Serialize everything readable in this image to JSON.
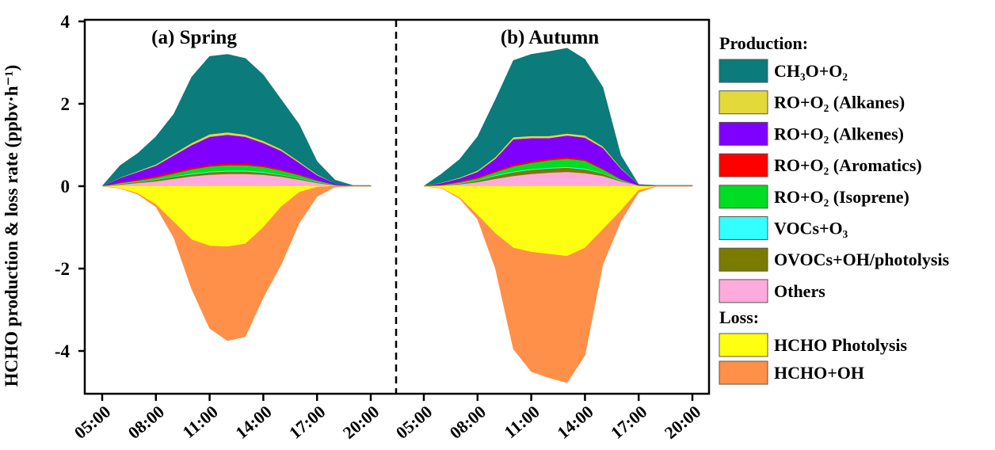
{
  "chart_data": {
    "type": "area",
    "ylabel": "HCHO production & loss rate (ppbv·h⁻¹)",
    "ylim": [
      -5,
      4
    ],
    "yticks": [
      "4",
      "2",
      "0",
      "-2",
      "-4"
    ],
    "ytick_values": [
      4,
      2,
      0,
      -2,
      -4
    ],
    "xticks": [
      "05:00",
      "08:00",
      "11:00",
      "14:00",
      "17:00",
      "20:00"
    ],
    "xtick_hours": [
      5,
      8,
      11,
      14,
      17,
      20
    ],
    "hours": [
      5,
      6,
      7,
      8,
      9,
      10,
      11,
      12,
      13,
      14,
      15,
      16,
      17,
      18,
      19,
      20
    ],
    "legend_position": "right",
    "legend": {
      "production_heading": "Production:",
      "loss_heading": "Loss:",
      "production": [
        {
          "key": "ch3o",
          "label": "CH₃O+O₂",
          "color": "#0b7b7b"
        },
        {
          "key": "alkanes",
          "label": "RO+O₂ (Alkanes)",
          "color": "#e3d93a"
        },
        {
          "key": "alkenes",
          "label": "RO+O₂ (Alkenes)",
          "color": "#7f00ff"
        },
        {
          "key": "aromatics",
          "label": "RO+O₂ (Aromatics)",
          "color": "#ff0000"
        },
        {
          "key": "isoprene",
          "label": "RO+O₂ (Isoprene)",
          "color": "#00dd22"
        },
        {
          "key": "vocs_o3",
          "label": "VOCs+O₃",
          "color": "#33ffff"
        },
        {
          "key": "ovocs",
          "label": "OVOCs+OH/photolysis",
          "color": "#7b7b00"
        },
        {
          "key": "others",
          "label": "Others",
          "color": "#ffaadd"
        }
      ],
      "loss": [
        {
          "key": "photolysis",
          "label": "HCHO Photolysis",
          "color": "#ffff11"
        },
        {
          "key": "oh",
          "label": "HCHO+OH",
          "color": "#ff904a"
        }
      ]
    },
    "panels": [
      {
        "title": "(a) Spring",
        "series": {
          "others": [
            0,
            0.04,
            0.08,
            0.12,
            0.18,
            0.24,
            0.28,
            0.3,
            0.3,
            0.28,
            0.23,
            0.16,
            0.08,
            0.02,
            0,
            0
          ],
          "ovocs": [
            0,
            0.02,
            0.03,
            0.04,
            0.05,
            0.05,
            0.06,
            0.06,
            0.06,
            0.05,
            0.04,
            0.03,
            0.02,
            0.01,
            0,
            0
          ],
          "vocs_o3": [
            0,
            0.01,
            0.01,
            0.01,
            0.01,
            0.02,
            0.02,
            0.02,
            0.02,
            0.02,
            0.01,
            0.01,
            0.01,
            0,
            0,
            0
          ],
          "isoprene": [
            0,
            0.01,
            0.02,
            0.04,
            0.07,
            0.1,
            0.12,
            0.13,
            0.13,
            0.12,
            0.1,
            0.07,
            0.03,
            0.01,
            0,
            0
          ],
          "aromatics": [
            0,
            0.02,
            0.03,
            0.04,
            0.04,
            0.04,
            0.04,
            0.04,
            0.04,
            0.03,
            0.03,
            0.02,
            0.01,
            0,
            0,
            0
          ],
          "alkenes": [
            0,
            0.1,
            0.18,
            0.25,
            0.4,
            0.55,
            0.68,
            0.7,
            0.65,
            0.55,
            0.45,
            0.28,
            0.12,
            0.03,
            0.01,
            0.01
          ],
          "alkanes": [
            0,
            0.01,
            0.02,
            0.03,
            0.04,
            0.05,
            0.06,
            0.06,
            0.05,
            0.05,
            0.04,
            0.03,
            0.02,
            0,
            0,
            0
          ],
          "ch3o": [
            0,
            0.29,
            0.43,
            0.67,
            0.96,
            1.6,
            1.89,
            1.89,
            1.85,
            1.6,
            1.2,
            0.9,
            0.31,
            0.08,
            0.01,
            0.01
          ],
          "photolysis": [
            0,
            -0.05,
            -0.18,
            -0.45,
            -0.87,
            -1.3,
            -1.45,
            -1.47,
            -1.4,
            -1.0,
            -0.5,
            -0.15,
            -0.02,
            0,
            0,
            0
          ],
          "oh": [
            0,
            0,
            -0.02,
            -0.05,
            -0.38,
            -1.2,
            -2.0,
            -2.28,
            -2.25,
            -1.7,
            -1.4,
            -0.75,
            -0.23,
            -0.02,
            0,
            0
          ]
        }
      },
      {
        "title": "(b) Autumn",
        "series": {
          "others": [
            0,
            0.02,
            0.05,
            0.1,
            0.18,
            0.25,
            0.3,
            0.33,
            0.35,
            0.32,
            0.25,
            0.12,
            0.02,
            0,
            0,
            0
          ],
          "ovocs": [
            0,
            0.01,
            0.02,
            0.04,
            0.07,
            0.09,
            0.1,
            0.1,
            0.1,
            0.09,
            0.06,
            0.02,
            0,
            0,
            0,
            0
          ],
          "vocs_o3": [
            0,
            0,
            0.01,
            0.01,
            0.02,
            0.02,
            0.02,
            0.02,
            0.02,
            0.02,
            0.01,
            0.01,
            0,
            0,
            0,
            0
          ],
          "isoprene": [
            0,
            0,
            0.02,
            0.04,
            0.07,
            0.12,
            0.15,
            0.18,
            0.2,
            0.19,
            0.09,
            0.02,
            0,
            0,
            0,
            0
          ],
          "aromatics": [
            0,
            0.01,
            0.02,
            0.03,
            0.03,
            0.04,
            0.04,
            0.04,
            0.04,
            0.03,
            0.02,
            0.01,
            0,
            0,
            0,
            0
          ],
          "alkenes": [
            0,
            0.04,
            0.07,
            0.13,
            0.3,
            0.62,
            0.56,
            0.5,
            0.52,
            0.53,
            0.5,
            0.25,
            0.02,
            0.02,
            0.02,
            0.02
          ],
          "alkanes": [
            0,
            0.01,
            0.02,
            0.03,
            0.04,
            0.05,
            0.05,
            0.05,
            0.05,
            0.05,
            0.04,
            0.02,
            0,
            0,
            0,
            0
          ],
          "ch3o": [
            0,
            0.21,
            0.44,
            0.82,
            1.39,
            1.86,
            1.98,
            2.05,
            2.07,
            1.85,
            1.43,
            0.3,
            0,
            0,
            0,
            0
          ],
          "photolysis": [
            0,
            -0.05,
            -0.28,
            -0.7,
            -1.15,
            -1.5,
            -1.6,
            -1.65,
            -1.7,
            -1.5,
            -1.05,
            -0.6,
            -0.1,
            0,
            0,
            0
          ],
          "oh": [
            0,
            0,
            -0.02,
            -0.1,
            -0.85,
            -2.45,
            -2.9,
            -3.0,
            -3.07,
            -2.6,
            -0.85,
            -0.25,
            -0.05,
            0,
            0,
            0
          ]
        }
      }
    ]
  }
}
